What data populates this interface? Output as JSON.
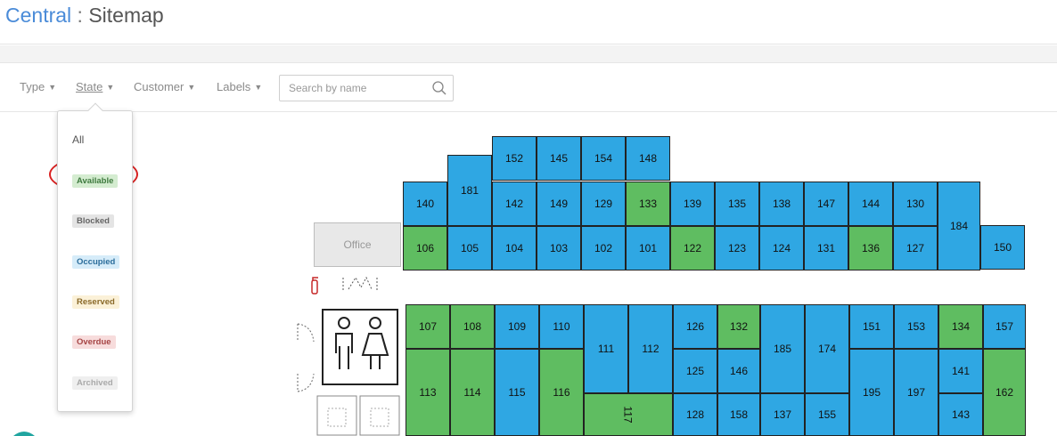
{
  "header": {
    "link": "Central",
    "separator": " : ",
    "title": "Sitemap"
  },
  "filters": {
    "type": "Type",
    "state": "State",
    "customer": "Customer",
    "labels": "Labels",
    "search_placeholder": "Search by name"
  },
  "state_dropdown": {
    "all": "All",
    "options": [
      "Available",
      "Blocked",
      "Occupied",
      "Reserved",
      "Overdue",
      "Archived"
    ],
    "highlighted": "Available"
  },
  "colors": {
    "occupied": "#2fa7e3",
    "available": "#5fbd61",
    "highlight": "#d92020"
  },
  "map": {
    "office_label": "Office",
    "icons": [
      "fire-extinguisher-icon",
      "restroom-icon",
      "elevator-icon"
    ],
    "rows": {
      "top": [
        {
          "label": "152",
          "state": "occupied"
        },
        {
          "label": "145",
          "state": "occupied"
        },
        {
          "label": "154",
          "state": "occupied"
        },
        {
          "label": "148",
          "state": "occupied"
        }
      ],
      "upper": [
        {
          "label": "140",
          "state": "occupied"
        },
        {
          "label": "181",
          "state": "occupied"
        },
        {
          "label": "142",
          "state": "occupied"
        },
        {
          "label": "149",
          "state": "occupied"
        },
        {
          "label": "129",
          "state": "occupied"
        },
        {
          "label": "133",
          "state": "available"
        },
        {
          "label": "139",
          "state": "occupied"
        },
        {
          "label": "135",
          "state": "occupied"
        },
        {
          "label": "138",
          "state": "occupied"
        },
        {
          "label": "147",
          "state": "occupied"
        },
        {
          "label": "144",
          "state": "occupied"
        },
        {
          "label": "130",
          "state": "occupied"
        },
        {
          "label": "184",
          "state": "occupied"
        }
      ],
      "middle": [
        {
          "label": "106",
          "state": "available"
        },
        {
          "label": "105",
          "state": "occupied"
        },
        {
          "label": "104",
          "state": "occupied"
        },
        {
          "label": "103",
          "state": "occupied"
        },
        {
          "label": "102",
          "state": "occupied"
        },
        {
          "label": "101",
          "state": "occupied"
        },
        {
          "label": "122",
          "state": "available"
        },
        {
          "label": "123",
          "state": "occupied"
        },
        {
          "label": "124",
          "state": "occupied"
        },
        {
          "label": "131",
          "state": "occupied"
        },
        {
          "label": "136",
          "state": "available"
        },
        {
          "label": "127",
          "state": "occupied"
        },
        {
          "label": "150",
          "state": "occupied"
        }
      ],
      "lower": [
        {
          "label": "107",
          "state": "available"
        },
        {
          "label": "108",
          "state": "available"
        },
        {
          "label": "109",
          "state": "occupied"
        },
        {
          "label": "110",
          "state": "occupied"
        },
        {
          "label": "111",
          "state": "occupied"
        },
        {
          "label": "112",
          "state": "occupied"
        },
        {
          "label": "126",
          "state": "occupied"
        },
        {
          "label": "132",
          "state": "available"
        },
        {
          "label": "185",
          "state": "occupied"
        },
        {
          "label": "174",
          "state": "occupied"
        },
        {
          "label": "151",
          "state": "occupied"
        },
        {
          "label": "153",
          "state": "occupied"
        },
        {
          "label": "134",
          "state": "available"
        },
        {
          "label": "157",
          "state": "occupied"
        },
        {
          "label": "125",
          "state": "occupied"
        },
        {
          "label": "146",
          "state": "occupied"
        },
        {
          "label": "141",
          "state": "occupied"
        },
        {
          "label": "113",
          "state": "available"
        },
        {
          "label": "114",
          "state": "available"
        },
        {
          "label": "115",
          "state": "occupied"
        },
        {
          "label": "116",
          "state": "available"
        },
        {
          "label": "195",
          "state": "occupied"
        },
        {
          "label": "197",
          "state": "occupied"
        },
        {
          "label": "162",
          "state": "available"
        },
        {
          "label": "117",
          "state": "available"
        },
        {
          "label": "128",
          "state": "occupied"
        },
        {
          "label": "158",
          "state": "occupied"
        },
        {
          "label": "137",
          "state": "occupied"
        },
        {
          "label": "155",
          "state": "occupied"
        },
        {
          "label": "143",
          "state": "occupied"
        }
      ]
    }
  }
}
